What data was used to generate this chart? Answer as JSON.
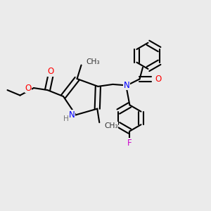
{
  "bg_color": "#ebebeb",
  "figsize": [
    3.0,
    3.0
  ],
  "dpi": 100,
  "bond_color": "#000000",
  "bond_lw": 1.5,
  "atom_colors": {
    "N": "#0000ff",
    "O": "#ff0000",
    "F": "#cc00cc",
    "H": "#777777",
    "C": "#000000"
  },
  "font_size": 8.5
}
